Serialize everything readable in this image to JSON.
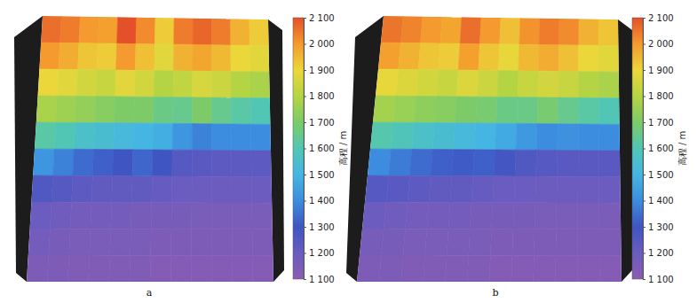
{
  "chart_data": [
    {
      "type": "heatmap",
      "title": "a",
      "cells": [
        [
          2060,
          2040,
          2000,
          1990,
          2100,
          2020,
          1920,
          2040,
          2070,
          2040,
          1960,
          1920
        ],
        [
          2000,
          1970,
          1930,
          1920,
          2000,
          1940,
          1880,
          1960,
          1980,
          1950,
          1900,
          1880
        ],
        [
          1900,
          1880,
          1850,
          1830,
          1880,
          1850,
          1800,
          1820,
          1860,
          1840,
          1800,
          1780
        ],
        [
          1780,
          1760,
          1740,
          1720,
          1700,
          1700,
          1660,
          1650,
          1700,
          1650,
          1620,
          1600
        ],
        [
          1620,
          1600,
          1560,
          1540,
          1520,
          1500,
          1480,
          1420,
          1380,
          1400,
          1400,
          1400
        ],
        [
          1420,
          1380,
          1340,
          1320,
          1300,
          1330,
          1300,
          1250,
          1240,
          1230,
          1230,
          1230
        ],
        [
          1260,
          1250,
          1230,
          1220,
          1220,
          1220,
          1210,
          1200,
          1190,
          1190,
          1190,
          1190
        ],
        [
          1200,
          1180,
          1170,
          1170,
          1170,
          1160,
          1160,
          1160,
          1150,
          1150,
          1150,
          1150
        ],
        [
          1170,
          1160,
          1150,
          1150,
          1150,
          1150,
          1140,
          1140,
          1140,
          1140,
          1140,
          1140
        ],
        [
          1140,
          1140,
          1130,
          1130,
          1130,
          1130,
          1120,
          1120,
          1120,
          1120,
          1120,
          1120
        ]
      ],
      "colorbar": {
        "label": "高程 / m",
        "range": [
          1100,
          2100
        ],
        "ticks": [
          {
            "value": 1100,
            "label": "1 100"
          },
          {
            "value": 1200,
            "label": "1 200"
          },
          {
            "value": 1300,
            "label": "1 300"
          },
          {
            "value": 1400,
            "label": "1 400"
          },
          {
            "value": 1500,
            "label": "1 500"
          },
          {
            "value": 1600,
            "label": "1 600"
          },
          {
            "value": 1700,
            "label": "1 700"
          },
          {
            "value": 1800,
            "label": "1 800"
          },
          {
            "value": 1900,
            "label": "1 900"
          },
          {
            "value": 2000,
            "label": "2 000"
          },
          {
            "value": 2100,
            "label": "2 100"
          }
        ]
      }
    },
    {
      "type": "heatmap",
      "title": "b",
      "cells": [
        [
          2050,
          2030,
          2000,
          1980,
          2060,
          2000,
          1940,
          2010,
          2040,
          2020,
          1960,
          1930
        ],
        [
          1990,
          1960,
          1930,
          1920,
          1990,
          1930,
          1890,
          1950,
          1970,
          1940,
          1900,
          1880
        ],
        [
          1890,
          1870,
          1850,
          1830,
          1870,
          1840,
          1800,
          1830,
          1850,
          1830,
          1800,
          1780
        ],
        [
          1770,
          1750,
          1730,
          1720,
          1700,
          1690,
          1660,
          1660,
          1690,
          1650,
          1620,
          1600
        ],
        [
          1610,
          1590,
          1560,
          1540,
          1520,
          1500,
          1470,
          1430,
          1400,
          1410,
          1400,
          1400
        ],
        [
          1400,
          1370,
          1340,
          1320,
          1310,
          1320,
          1290,
          1260,
          1250,
          1240,
          1240,
          1240
        ],
        [
          1250,
          1240,
          1230,
          1220,
          1220,
          1210,
          1200,
          1200,
          1190,
          1190,
          1190,
          1190
        ],
        [
          1190,
          1180,
          1170,
          1170,
          1170,
          1160,
          1160,
          1160,
          1150,
          1150,
          1150,
          1150
        ],
        [
          1160,
          1160,
          1150,
          1150,
          1150,
          1150,
          1140,
          1140,
          1140,
          1140,
          1140,
          1140
        ],
        [
          1140,
          1140,
          1130,
          1130,
          1130,
          1130,
          1120,
          1120,
          1120,
          1120,
          1120,
          1120
        ]
      ],
      "colorbar": {
        "label": "高程 / m",
        "range": [
          1100,
          2100
        ],
        "ticks": [
          {
            "value": 1100,
            "label": "1 100"
          },
          {
            "value": 1200,
            "label": "1 200"
          },
          {
            "value": 1300,
            "label": "1 300"
          },
          {
            "value": 1400,
            "label": "1 400"
          },
          {
            "value": 1500,
            "label": "1 500"
          },
          {
            "value": 1600,
            "label": "1 600"
          },
          {
            "value": 1700,
            "label": "1 700"
          },
          {
            "value": 1800,
            "label": "1 800"
          },
          {
            "value": 1900,
            "label": "1 900"
          },
          {
            "value": 2000,
            "label": "2 000"
          },
          {
            "value": 2100,
            "label": "2 100"
          }
        ]
      }
    }
  ]
}
